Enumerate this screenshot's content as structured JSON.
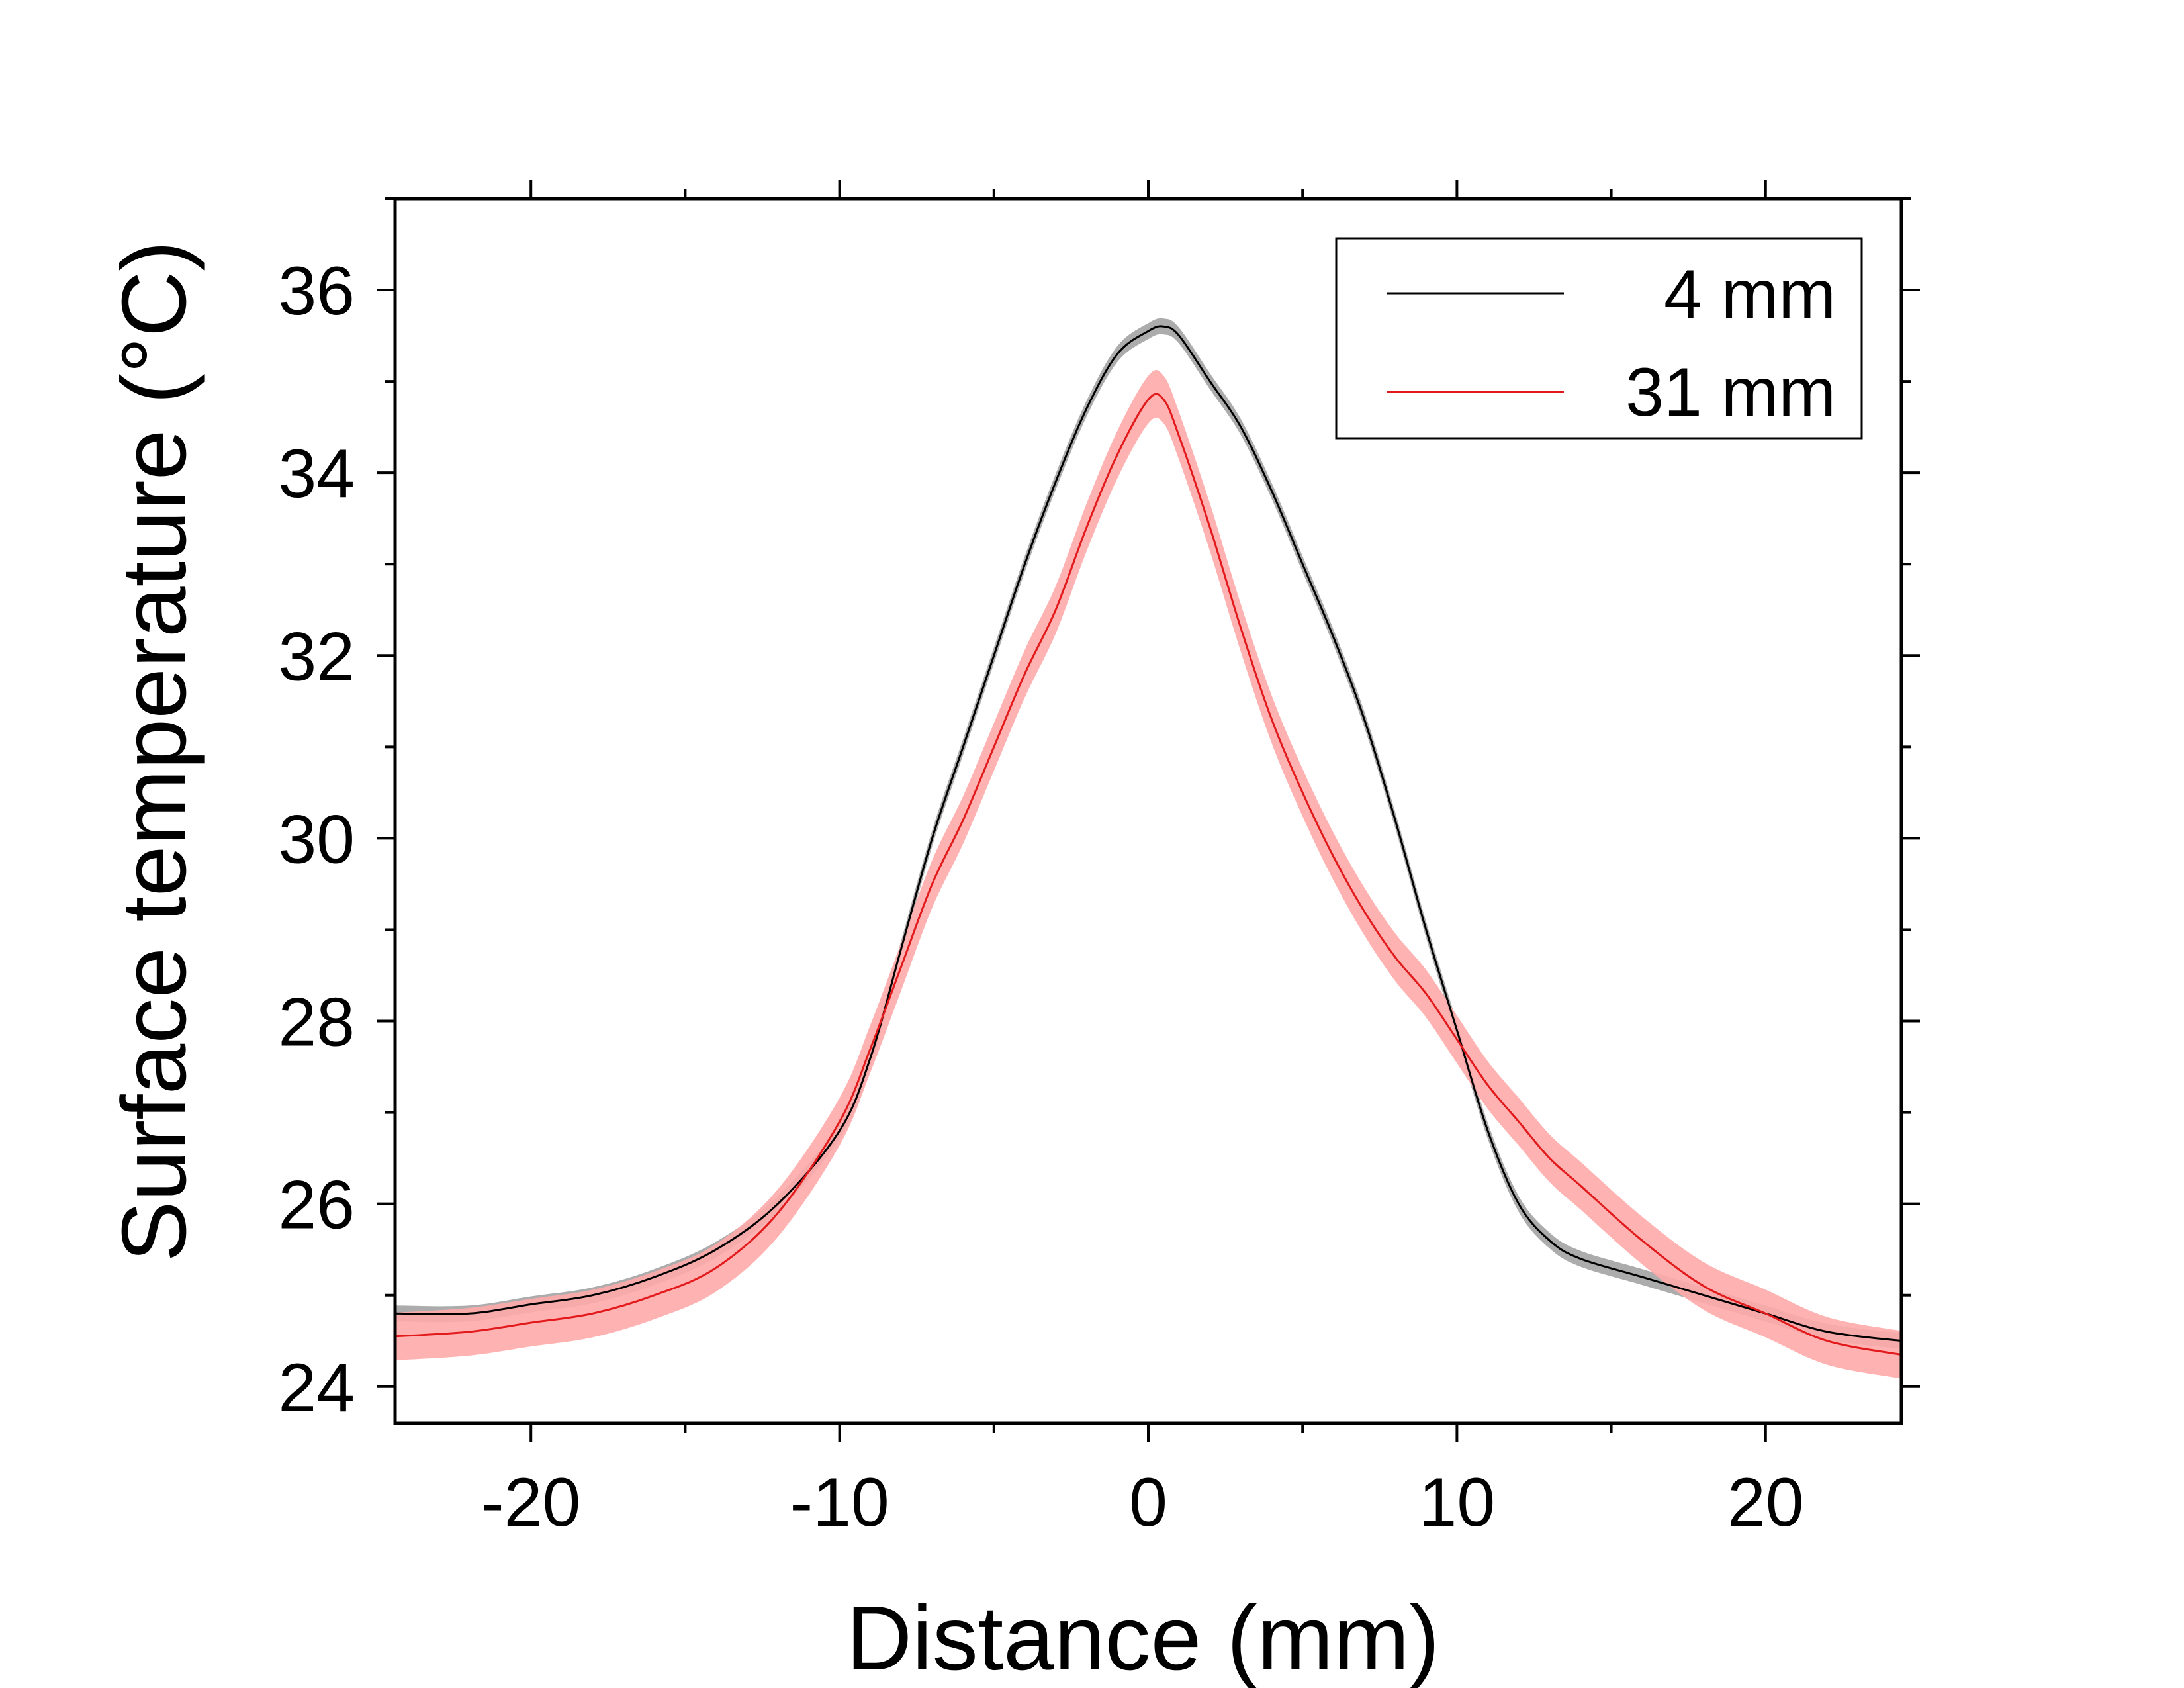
{
  "chart_data": {
    "type": "line",
    "title": "",
    "xlabel": "Distance (mm)",
    "ylabel": "Surface temperature (°C)",
    "xlim": [
      -24.4,
      24.4
    ],
    "ylim": [
      23.6,
      37.0
    ],
    "xticks": [
      -20,
      -10,
      0,
      10,
      20
    ],
    "xtick_labels": [
      "-20",
      "-10",
      "0",
      "10",
      "20"
    ],
    "yticks": [
      24,
      26,
      28,
      30,
      32,
      34,
      36
    ],
    "ytick_labels": [
      "24",
      "26",
      "28",
      "30",
      "32",
      "34",
      "36"
    ],
    "legend_position": "top-right",
    "series": [
      {
        "name": "4 mm",
        "label": "4 mm",
        "color": "#000000",
        "band_color": "#9e9e9e",
        "x": [
          -24.4,
          -22,
          -20,
          -18,
          -16,
          -14,
          -12,
          -10,
          -9,
          -8,
          -7,
          -6,
          -5,
          -4,
          -3,
          -2,
          -1,
          0,
          0.5,
          1,
          2,
          3,
          4,
          5,
          6,
          7,
          8,
          9,
          10,
          11,
          12,
          13,
          14,
          16,
          18,
          20,
          22,
          24.4
        ],
        "y": [
          24.8,
          24.8,
          24.9,
          25.0,
          25.2,
          25.5,
          26.0,
          26.8,
          27.6,
          28.8,
          30.0,
          31.0,
          32.0,
          33.0,
          33.9,
          34.7,
          35.3,
          35.55,
          35.6,
          35.5,
          35.0,
          34.5,
          33.8,
          33.0,
          32.2,
          31.3,
          30.2,
          29.0,
          27.9,
          26.8,
          26.0,
          25.6,
          25.4,
          25.2,
          25.0,
          24.8,
          24.6,
          24.5
        ],
        "band": [
          0.12,
          0.12,
          0.12,
          0.12,
          0.12,
          0.12,
          0.12,
          0.12,
          0.12,
          0.12,
          0.12,
          0.12,
          0.12,
          0.12,
          0.12,
          0.12,
          0.12,
          0.12,
          0.12,
          0.12,
          0.12,
          0.12,
          0.12,
          0.12,
          0.12,
          0.12,
          0.12,
          0.12,
          0.12,
          0.12,
          0.12,
          0.12,
          0.12,
          0.12,
          0.12,
          0.12,
          0.12,
          0.12
        ]
      },
      {
        "name": "31 mm",
        "label": "31 mm",
        "color": "#e31a1c",
        "band_color": "#ffaaaa",
        "x": [
          -24.4,
          -22,
          -20,
          -18,
          -16,
          -14,
          -12,
          -10,
          -9,
          -8,
          -7,
          -6,
          -5,
          -4,
          -3,
          -2,
          -1,
          0,
          0.5,
          1,
          2,
          3,
          4,
          5,
          6,
          7,
          8,
          9,
          10,
          11,
          12,
          13,
          14,
          16,
          18,
          20,
          22,
          24.4
        ],
        "y": [
          24.55,
          24.6,
          24.7,
          24.8,
          25.0,
          25.3,
          25.9,
          26.9,
          27.7,
          28.6,
          29.5,
          30.2,
          31.0,
          31.8,
          32.5,
          33.4,
          34.2,
          34.8,
          34.8,
          34.4,
          33.4,
          32.3,
          31.3,
          30.5,
          29.8,
          29.2,
          28.7,
          28.3,
          27.8,
          27.3,
          26.9,
          26.5,
          26.2,
          25.6,
          25.1,
          24.8,
          24.5,
          24.35
        ]
      }
    ]
  }
}
